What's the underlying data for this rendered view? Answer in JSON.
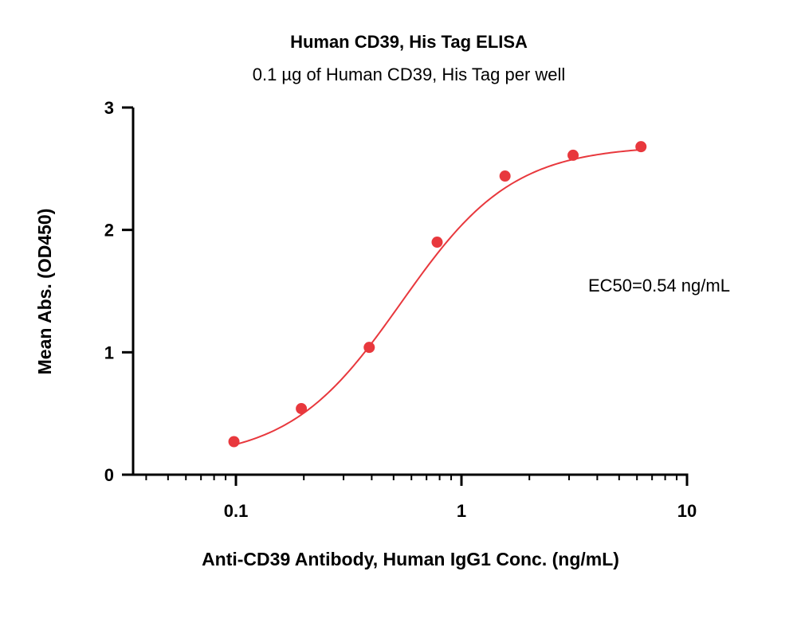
{
  "chart_data": {
    "type": "scatter",
    "title": "Human CD39, His Tag ELISA",
    "subtitle": "0.1 µg of Human CD39, His Tag per well",
    "xlabel": "Anti-CD39 Antibody, Human IgG1 Conc. (ng/mL)",
    "ylabel": "Mean Abs. (OD450)",
    "x_scale": "log",
    "xlim": [
      0.035,
      10
    ],
    "ylim": [
      0,
      3
    ],
    "x_ticks": [
      0.1,
      1,
      10
    ],
    "x_tick_labels": [
      "0.1",
      "1",
      "10"
    ],
    "y_ticks": [
      0,
      1,
      2,
      3
    ],
    "y_tick_labels": [
      "0",
      "1",
      "2",
      "3"
    ],
    "grid": false,
    "legend": "none",
    "annotation": "EC50=0.54 ng/mL",
    "series": [
      {
        "color": "#e8383d",
        "x": [
          0.098,
          0.195,
          0.39,
          0.78,
          1.56,
          3.125,
          6.25
        ],
        "y": [
          0.27,
          0.54,
          1.04,
          1.9,
          2.44,
          2.61,
          2.68
        ]
      }
    ],
    "fit": {
      "type": "4PL",
      "bottom": 0.12,
      "top": 2.69,
      "ec50": 0.54,
      "hill": 1.75,
      "color": "#e8383d"
    }
  }
}
